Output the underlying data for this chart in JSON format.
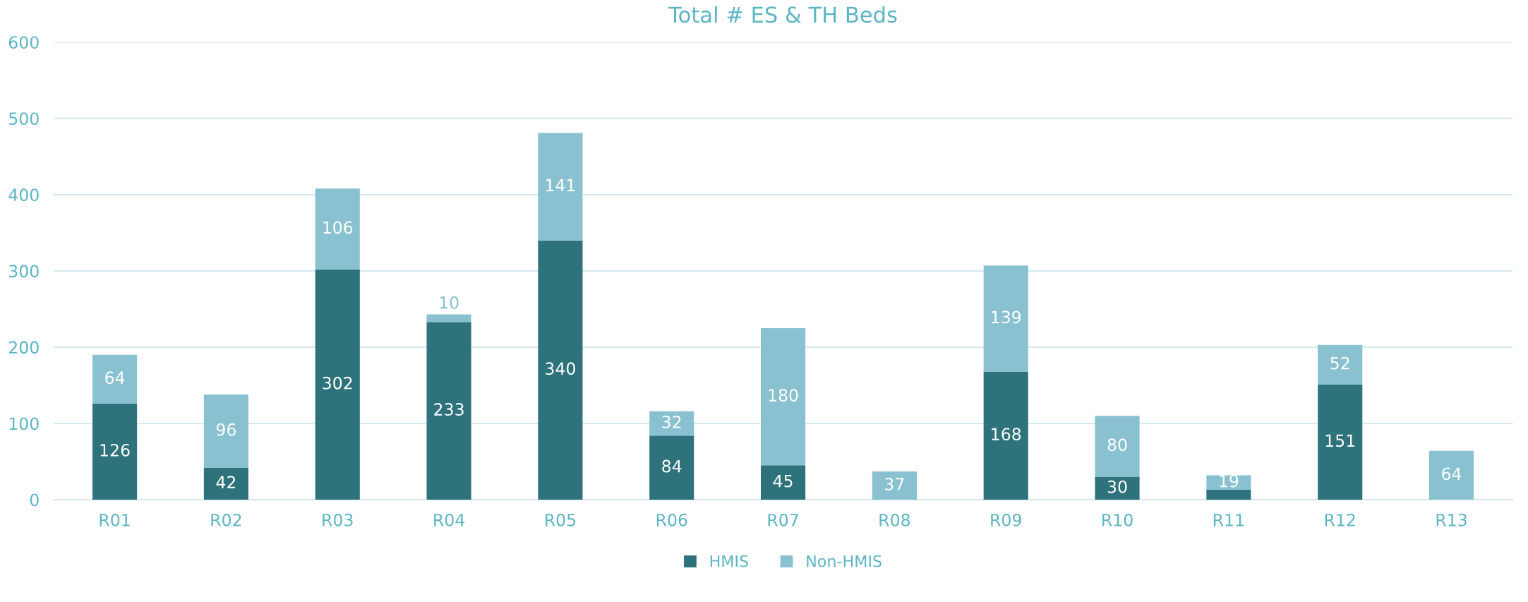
{
  "chart_data": {
    "type": "bar",
    "title": "Total # ES & TH Beds",
    "stacked": true,
    "categories": [
      "R01",
      "R02",
      "R03",
      "R04",
      "R05",
      "R06",
      "R07",
      "R08",
      "R09",
      "R10",
      "R11",
      "R12",
      "R13"
    ],
    "series": [
      {
        "name": "HMIS",
        "color": "#2e737c",
        "values": [
          126,
          42,
          302,
          233,
          340,
          84,
          45,
          null,
          168,
          30,
          13,
          151,
          null
        ],
        "value_labels": [
          "126",
          "42",
          "302",
          "233",
          "340",
          "84",
          "45",
          null,
          "168",
          "30",
          null,
          "151",
          null
        ]
      },
      {
        "name": "Non-HMIS",
        "color": "#89c1d0",
        "values": [
          64,
          96,
          106,
          10,
          141,
          32,
          180,
          37,
          139,
          80,
          19,
          52,
          64
        ],
        "value_labels": [
          "64",
          "96",
          "106",
          "10",
          "141",
          "32",
          "180",
          "37",
          "139",
          "80",
          "19",
          "52",
          "64"
        ]
      }
    ],
    "ylim": [
      0,
      600
    ],
    "yticks": [
      0,
      100,
      200,
      300,
      400,
      500,
      600
    ],
    "grid": "y",
    "legend": "bottom"
  }
}
